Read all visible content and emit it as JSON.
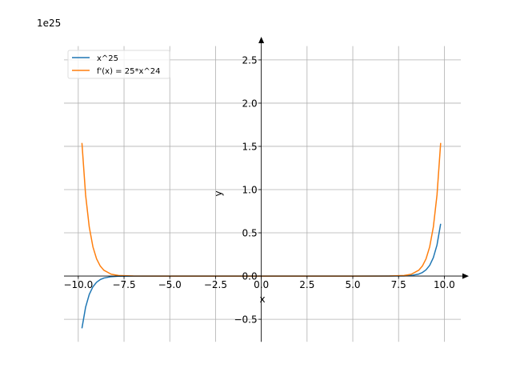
{
  "chart_data": {
    "type": "line",
    "title": "",
    "xlabel": "x",
    "ylabel": "y",
    "offset_text": "1e25",
    "xlim": [
      -10.78,
      10.9
    ],
    "ylim": [
      -0.76,
      2.66
    ],
    "grid": true,
    "legend_placement": "top-left",
    "x_ticks": [
      -10,
      -7.5,
      -5,
      -2.5,
      0,
      2.5,
      5,
      7.5,
      10
    ],
    "x_tick_labels": [
      "−10.0",
      "−7.5",
      "−5.0",
      "−2.5",
      "0.0",
      "2.5",
      "5.0",
      "7.5",
      "10.0"
    ],
    "y_ticks": [
      -0.5,
      0,
      0.5,
      1,
      1.5,
      2,
      2.5
    ],
    "y_tick_labels": [
      "−0.5",
      "0.0",
      "0.5",
      "1.0",
      "1.5",
      "2.0",
      "2.5"
    ],
    "x": [
      -9.8,
      -9.6,
      -9.4,
      -9.2,
      -9.0,
      -8.8,
      -8.6,
      -8.2,
      -7.8,
      -7.0,
      -5.0,
      -2.5,
      0,
      2.5,
      5.0,
      7.0,
      7.8,
      8.2,
      8.6,
      8.8,
      9.0,
      9.2,
      9.4,
      9.6,
      9.8
    ],
    "series": [
      {
        "name": "x^25",
        "color": "#1f77b4",
        "values": [
          -0.604,
          -0.36,
          -0.213,
          -0.124,
          -0.0718,
          -0.0409,
          -0.023,
          -0.007,
          -0.002,
          -0.000134,
          0,
          0,
          0,
          0,
          0,
          0.000134,
          0.002,
          0.007,
          0.023,
          0.0409,
          0.0718,
          0.124,
          0.213,
          0.36,
          0.604
        ]
      },
      {
        "name": "f'(x) = 25*x^24",
        "color": "#ff7f0e",
        "values": [
          1.54,
          0.938,
          0.567,
          0.338,
          0.199,
          0.116,
          0.067,
          0.0213,
          0.0064,
          0.00048,
          0,
          0,
          0,
          0,
          0,
          0.00048,
          0.0064,
          0.0213,
          0.067,
          0.116,
          0.199,
          0.338,
          0.567,
          0.938,
          1.54
        ]
      }
    ]
  }
}
